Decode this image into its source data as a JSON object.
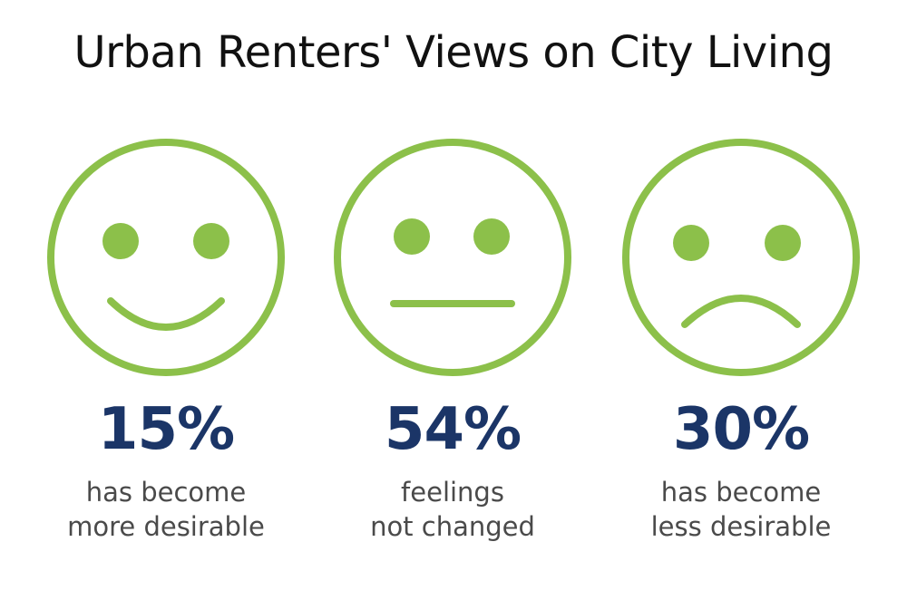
{
  "title": "Urban Renters' Views on City Living",
  "colors": {
    "face": "#8cc04a",
    "percent": "#1b3567",
    "text": "#4a4a4a"
  },
  "chart_data": {
    "type": "pictogram",
    "title": "Urban Renters' Views on City Living",
    "categories": [
      "has become more desirable",
      "feelings not changed",
      "has become less desirable"
    ],
    "values": [
      15,
      54,
      30
    ],
    "unit": "%"
  },
  "items": [
    {
      "icon": "happy-face-icon",
      "mood": "happy",
      "percent_label": "15%",
      "line1": "has become",
      "line2": "more desirable"
    },
    {
      "icon": "neutral-face-icon",
      "mood": "neutral",
      "percent_label": "54%",
      "line1": "feelings",
      "line2": "not changed"
    },
    {
      "icon": "sad-face-icon",
      "mood": "sad",
      "percent_label": "30%",
      "line1": "has become",
      "line2": "less desirable"
    }
  ]
}
